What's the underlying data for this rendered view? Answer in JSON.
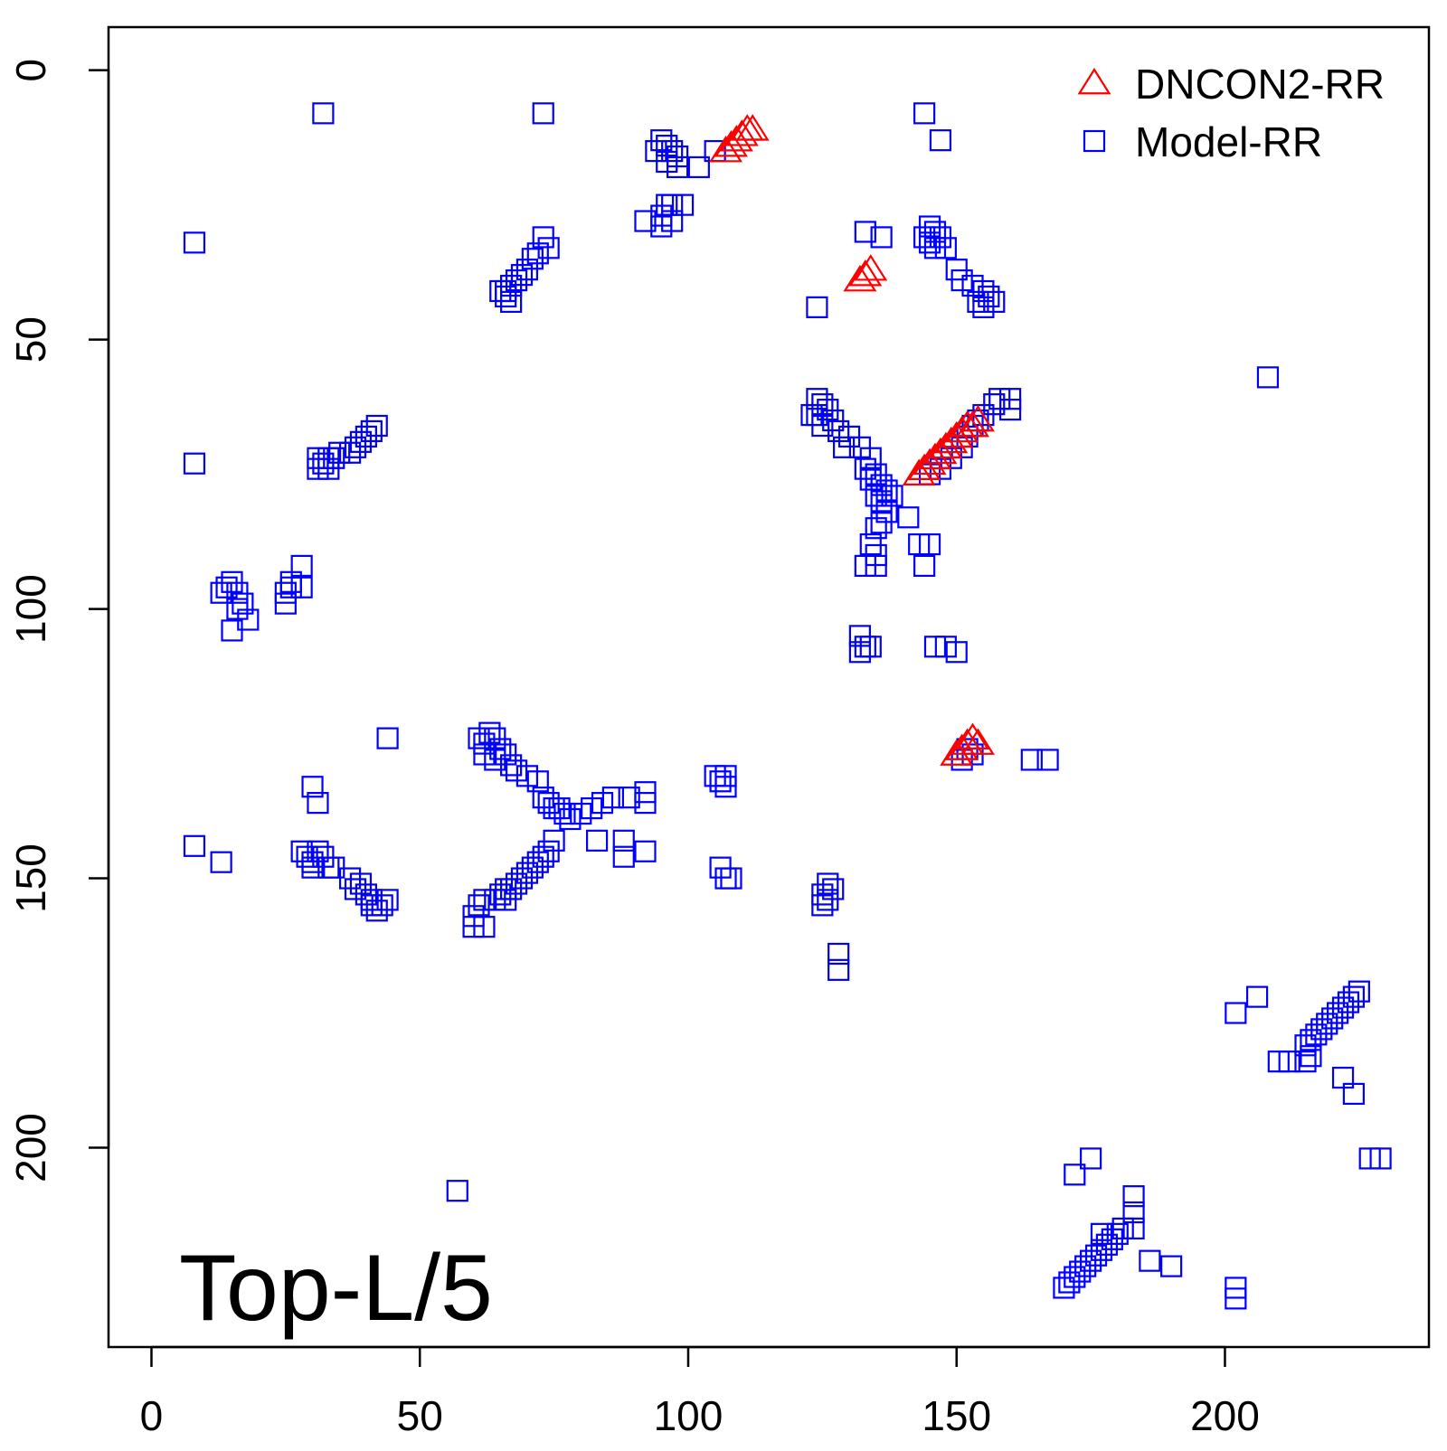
{
  "chart_data": {
    "type": "scatter",
    "title": "",
    "annotation": "Top-L/5",
    "xlabel": "",
    "ylabel": "",
    "xlim": [
      -8,
      238
    ],
    "ylim": [
      237,
      -8
    ],
    "y_axis_reversed": true,
    "x_ticks": [
      0,
      50,
      100,
      150,
      200
    ],
    "y_ticks": [
      0,
      50,
      100,
      150,
      200
    ],
    "x_tick_labels": [
      "0",
      "50",
      "100",
      "150",
      "200"
    ],
    "y_tick_labels": [
      "0",
      "50",
      "100",
      "150",
      "200"
    ],
    "grid": false,
    "legend_position": "top-right",
    "series": [
      {
        "name": "DNCON2-RR",
        "marker": "triangle-open",
        "color": "#ff0000",
        "points": [
          [
            107,
            15
          ],
          [
            108,
            14
          ],
          [
            109,
            13
          ],
          [
            110,
            12
          ],
          [
            111,
            11
          ],
          [
            112,
            11
          ],
          [
            132,
            39
          ],
          [
            133,
            38
          ],
          [
            134,
            37
          ],
          [
            143,
            75
          ],
          [
            144,
            74
          ],
          [
            145,
            73
          ],
          [
            146,
            72
          ],
          [
            147,
            71
          ],
          [
            148,
            70
          ],
          [
            149,
            69
          ],
          [
            150,
            68
          ],
          [
            151,
            67
          ],
          [
            152,
            66
          ],
          [
            153,
            66
          ],
          [
            154,
            65
          ],
          [
            150,
            127
          ],
          [
            151,
            126
          ],
          [
            152,
            125
          ],
          [
            153,
            124
          ],
          [
            154,
            125
          ]
        ]
      },
      {
        "name": "Model-RR",
        "marker": "square-open",
        "color": "#0000ff",
        "points": [
          [
            32,
            8
          ],
          [
            73,
            8
          ],
          [
            144,
            8
          ],
          [
            147,
            13
          ],
          [
            95,
            13
          ],
          [
            96,
            14
          ],
          [
            94,
            15
          ],
          [
            97,
            15
          ],
          [
            98,
            16
          ],
          [
            96,
            17
          ],
          [
            98,
            18
          ],
          [
            102,
            18
          ],
          [
            105,
            15
          ],
          [
            96,
            25
          ],
          [
            97,
            25
          ],
          [
            99,
            25
          ],
          [
            95,
            27
          ],
          [
            97,
            28
          ],
          [
            92,
            28
          ],
          [
            95,
            29
          ],
          [
            8,
            32
          ],
          [
            133,
            30
          ],
          [
            136,
            31
          ],
          [
            73,
            31
          ],
          [
            74,
            33
          ],
          [
            72,
            34
          ],
          [
            71,
            35
          ],
          [
            70,
            37
          ],
          [
            69,
            38
          ],
          [
            68,
            39
          ],
          [
            67,
            40
          ],
          [
            66,
            41
          ],
          [
            65,
            41
          ],
          [
            66,
            42
          ],
          [
            67,
            43
          ],
          [
            145,
            29
          ],
          [
            146,
            30
          ],
          [
            144,
            31
          ],
          [
            147,
            31
          ],
          [
            145,
            32
          ],
          [
            148,
            33
          ],
          [
            146,
            33
          ],
          [
            150,
            37
          ],
          [
            151,
            39
          ],
          [
            153,
            40
          ],
          [
            155,
            41
          ],
          [
            156,
            42
          ],
          [
            157,
            43
          ],
          [
            154,
            43
          ],
          [
            155,
            44
          ],
          [
            124,
            44
          ],
          [
            42,
            66
          ],
          [
            41,
            67
          ],
          [
            40,
            68
          ],
          [
            39,
            69
          ],
          [
            38,
            70
          ],
          [
            37,
            71
          ],
          [
            35,
            71
          ],
          [
            34,
            72
          ],
          [
            33,
            72
          ],
          [
            31,
            72
          ],
          [
            32,
            73
          ],
          [
            31,
            74
          ],
          [
            33,
            74
          ],
          [
            8,
            73
          ],
          [
            124,
            61
          ],
          [
            125,
            62
          ],
          [
            126,
            63
          ],
          [
            124,
            64
          ],
          [
            123,
            64
          ],
          [
            127,
            65
          ],
          [
            125,
            66
          ],
          [
            128,
            67
          ],
          [
            130,
            68
          ],
          [
            129,
            70
          ],
          [
            132,
            70
          ],
          [
            134,
            72
          ],
          [
            133,
            74
          ],
          [
            135,
            75
          ],
          [
            134,
            76
          ],
          [
            136,
            77
          ],
          [
            137,
            78
          ],
          [
            135,
            79
          ],
          [
            138,
            79
          ],
          [
            136,
            80
          ],
          [
            137,
            82
          ],
          [
            136,
            84
          ],
          [
            135,
            85
          ],
          [
            134,
            88
          ],
          [
            135,
            90
          ],
          [
            133,
            92
          ],
          [
            135,
            92
          ],
          [
            141,
            83
          ],
          [
            143,
            88
          ],
          [
            145,
            88
          ],
          [
            144,
            92
          ],
          [
            158,
            61
          ],
          [
            160,
            61
          ],
          [
            157,
            62
          ],
          [
            160,
            63
          ],
          [
            155,
            64
          ],
          [
            154,
            65
          ],
          [
            153,
            66
          ],
          [
            152,
            68
          ],
          [
            151,
            70
          ],
          [
            149,
            72
          ],
          [
            147,
            74
          ],
          [
            145,
            75
          ],
          [
            208,
            57
          ],
          [
            28,
            92
          ],
          [
            28,
            96
          ],
          [
            26,
            96
          ],
          [
            25,
            97
          ],
          [
            25,
            99
          ],
          [
            26,
            95
          ],
          [
            14,
            96
          ],
          [
            15,
            95
          ],
          [
            16,
            97
          ],
          [
            13,
            97
          ],
          [
            17,
            99
          ],
          [
            16,
            100
          ],
          [
            18,
            102
          ],
          [
            15,
            104
          ],
          [
            132,
            105
          ],
          [
            133,
            107
          ],
          [
            132,
            108
          ],
          [
            134,
            107
          ],
          [
            146,
            107
          ],
          [
            148,
            107
          ],
          [
            150,
            108
          ],
          [
            44,
            124
          ],
          [
            61,
            124
          ],
          [
            62,
            125
          ],
          [
            63,
            123
          ],
          [
            64,
            124
          ],
          [
            62,
            127
          ],
          [
            65,
            126
          ],
          [
            66,
            127
          ],
          [
            64,
            128
          ],
          [
            67,
            129
          ],
          [
            68,
            130
          ],
          [
            70,
            131
          ],
          [
            72,
            132
          ],
          [
            73,
            135
          ],
          [
            74,
            136
          ],
          [
            75,
            137
          ],
          [
            76,
            137
          ],
          [
            77,
            138
          ],
          [
            78,
            139
          ],
          [
            80,
            138
          ],
          [
            82,
            137
          ],
          [
            84,
            136
          ],
          [
            86,
            135
          ],
          [
            89,
            135
          ],
          [
            92,
            134
          ],
          [
            92,
            136
          ],
          [
            152,
            126
          ],
          [
            153,
            127
          ],
          [
            151,
            128
          ],
          [
            164,
            128
          ],
          [
            167,
            128
          ],
          [
            105,
            131
          ],
          [
            106,
            132
          ],
          [
            107,
            131
          ],
          [
            107,
            133
          ],
          [
            30,
            133
          ],
          [
            31,
            136
          ],
          [
            8,
            144
          ],
          [
            13,
            147
          ],
          [
            28,
            145
          ],
          [
            29,
            146
          ],
          [
            30,
            147
          ],
          [
            31,
            145
          ],
          [
            32,
            146
          ],
          [
            30,
            148
          ],
          [
            33,
            148
          ],
          [
            34,
            148
          ],
          [
            37,
            150
          ],
          [
            39,
            151
          ],
          [
            40,
            153
          ],
          [
            41,
            155
          ],
          [
            42,
            156
          ],
          [
            43,
            155
          ],
          [
            44,
            154
          ],
          [
            41,
            154
          ],
          [
            38,
            152
          ],
          [
            75,
            143
          ],
          [
            74,
            145
          ],
          [
            73,
            146
          ],
          [
            72,
            147
          ],
          [
            71,
            148
          ],
          [
            70,
            149
          ],
          [
            69,
            150
          ],
          [
            68,
            151
          ],
          [
            67,
            152
          ],
          [
            66,
            152
          ],
          [
            65,
            153
          ],
          [
            64,
            154
          ],
          [
            62,
            154
          ],
          [
            61,
            155
          ],
          [
            60,
            157
          ],
          [
            60,
            159
          ],
          [
            62,
            159
          ],
          [
            66,
            154
          ],
          [
            83,
            143
          ],
          [
            88,
            143
          ],
          [
            88,
            146
          ],
          [
            92,
            145
          ],
          [
            106,
            148
          ],
          [
            107,
            150
          ],
          [
            108,
            150
          ],
          [
            126,
            151
          ],
          [
            127,
            152
          ],
          [
            125,
            153
          ],
          [
            126,
            154
          ],
          [
            125,
            155
          ],
          [
            128,
            164
          ],
          [
            128,
            167
          ],
          [
            206,
            172
          ],
          [
            202,
            175
          ],
          [
            225,
            171
          ],
          [
            224,
            172
          ],
          [
            223,
            173
          ],
          [
            222,
            174
          ],
          [
            221,
            175
          ],
          [
            220,
            176
          ],
          [
            219,
            177
          ],
          [
            218,
            178
          ],
          [
            217,
            179
          ],
          [
            216,
            180
          ],
          [
            215,
            181
          ],
          [
            216,
            183
          ],
          [
            215,
            184
          ],
          [
            210,
            184
          ],
          [
            212,
            184
          ],
          [
            222,
            187
          ],
          [
            224,
            190
          ],
          [
            227,
            202
          ],
          [
            229,
            202
          ],
          [
            175,
            202
          ],
          [
            172,
            205
          ],
          [
            183,
            209
          ],
          [
            183,
            212
          ],
          [
            183,
            215
          ],
          [
            181,
            215
          ],
          [
            180,
            216
          ],
          [
            179,
            217
          ],
          [
            178,
            218
          ],
          [
            177,
            219
          ],
          [
            176,
            220
          ],
          [
            175,
            221
          ],
          [
            174,
            222
          ],
          [
            173,
            223
          ],
          [
            172,
            224
          ],
          [
            171,
            225
          ],
          [
            170,
            226
          ],
          [
            177,
            216
          ],
          [
            186,
            221
          ],
          [
            190,
            222
          ],
          [
            202,
            226
          ],
          [
            202,
            228
          ],
          [
            57,
            208
          ]
        ]
      }
    ]
  }
}
